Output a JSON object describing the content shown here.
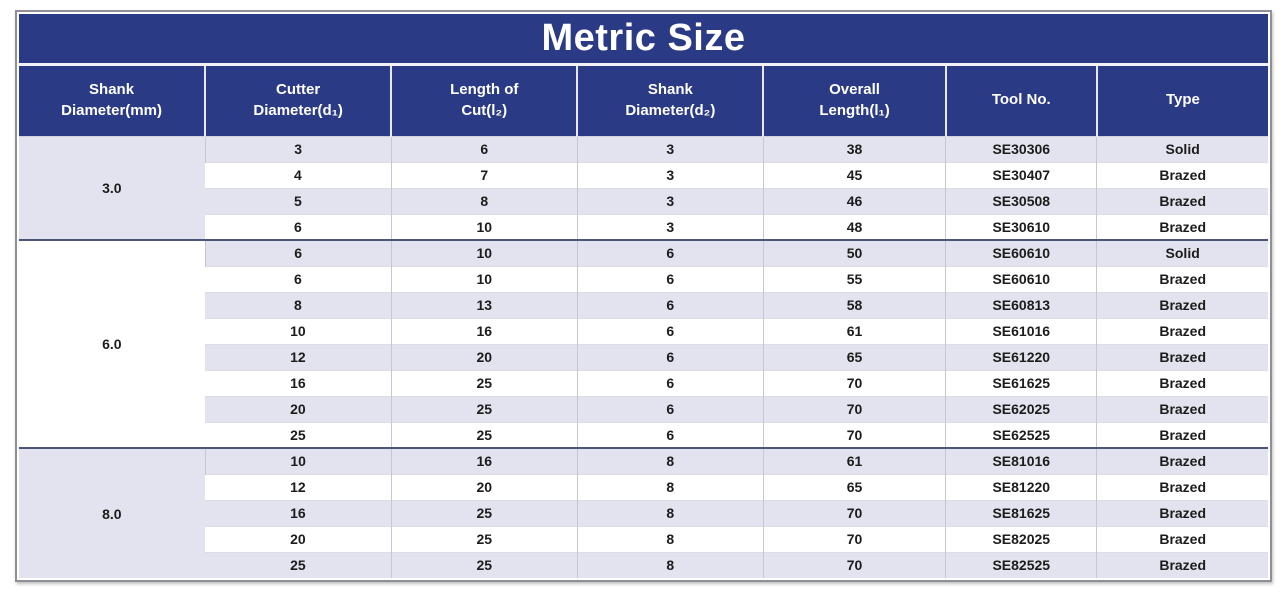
{
  "title": "Metric Size",
  "colors": {
    "header_navy": "#2b3a85",
    "row_alt": "#e3e3ef",
    "row_white": "#ffffff",
    "group_separator": "#4a5578",
    "frame_border": "#8f8f96",
    "text_dark": "#1c1c1c",
    "header_text": "#ffffff"
  },
  "table": {
    "columns": [
      {
        "id": "shank-diameter-mm",
        "label": "Shank\nDiameter(mm)"
      },
      {
        "id": "cutter-diameter-d1",
        "label": "Cutter\nDiameter(d₁)"
      },
      {
        "id": "length-of-cut-l2",
        "label": "Length of\nCut(l₂)"
      },
      {
        "id": "shank-diameter-d2",
        "label": "Shank\nDiameter(d₂)"
      },
      {
        "id": "overall-length-l1",
        "label": "Overall\nLength(l₁)"
      },
      {
        "id": "tool-no",
        "label": "Tool No."
      },
      {
        "id": "type",
        "label": "Type"
      }
    ],
    "groups": [
      {
        "shank_diameter": "3.0",
        "rows": [
          [
            "3",
            "6",
            "3",
            "38",
            "SE30306",
            "Solid"
          ],
          [
            "4",
            "7",
            "3",
            "45",
            "SE30407",
            "Brazed"
          ],
          [
            "5",
            "8",
            "3",
            "46",
            "SE30508",
            "Brazed"
          ],
          [
            "6",
            "10",
            "3",
            "48",
            "SE30610",
            "Brazed"
          ]
        ]
      },
      {
        "shank_diameter": "6.0",
        "rows": [
          [
            "6",
            "10",
            "6",
            "50",
            "SE60610",
            "Solid"
          ],
          [
            "6",
            "10",
            "6",
            "55",
            "SE60610",
            "Brazed"
          ],
          [
            "8",
            "13",
            "6",
            "58",
            "SE60813",
            "Brazed"
          ],
          [
            "10",
            "16",
            "6",
            "61",
            "SE61016",
            "Brazed"
          ],
          [
            "12",
            "20",
            "6",
            "65",
            "SE61220",
            "Brazed"
          ],
          [
            "16",
            "25",
            "6",
            "70",
            "SE61625",
            "Brazed"
          ],
          [
            "20",
            "25",
            "6",
            "70",
            "SE62025",
            "Brazed"
          ],
          [
            "25",
            "25",
            "6",
            "70",
            "SE62525",
            "Brazed"
          ]
        ]
      },
      {
        "shank_diameter": "8.0",
        "rows": [
          [
            "10",
            "16",
            "8",
            "61",
            "SE81016",
            "Brazed"
          ],
          [
            "12",
            "20",
            "8",
            "65",
            "SE81220",
            "Brazed"
          ],
          [
            "16",
            "25",
            "8",
            "70",
            "SE81625",
            "Brazed"
          ],
          [
            "20",
            "25",
            "8",
            "70",
            "SE82025",
            "Brazed"
          ],
          [
            "25",
            "25",
            "8",
            "70",
            "SE82525",
            "Brazed"
          ]
        ]
      }
    ]
  }
}
